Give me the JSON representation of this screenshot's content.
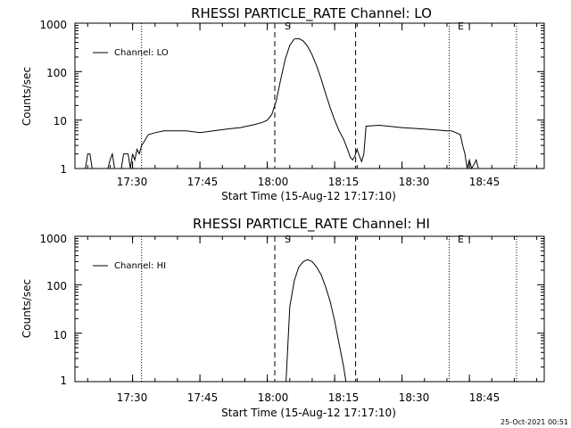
{
  "footer": {
    "timestamp": "25-Oct-2021 00:51"
  },
  "chart_data": [
    {
      "type": "line",
      "title": "RHESSI PARTICLE_RATE Channel: LO",
      "xlabel": "Start Time (15-Aug-12 17:17:10)",
      "ylabel": "Counts/sec",
      "yscale": "log",
      "ylim": [
        1,
        1000
      ],
      "xlim": [
        "17:17:10",
        "19:01:40"
      ],
      "y_ticks": [
        "1",
        "10",
        "100",
        "1000"
      ],
      "x_ticks": [
        "17:30",
        "17:45",
        "18:00",
        "18:15",
        "18:30",
        "18:45"
      ],
      "legend": {
        "label": "Channel: LO",
        "position": "top-left"
      },
      "markers": {
        "start_label": "S",
        "start_time": "18:01:40",
        "end_label": "E",
        "end_time": "18:40:30",
        "dashed_lines": [
          "18:01:40",
          "18:19:40"
        ],
        "dotted_lines": [
          "17:32:00",
          "18:40:30",
          "18:55:30"
        ]
      },
      "series": [
        {
          "name": "Channel: LO",
          "x": [
            "17:19:30",
            "17:20:00",
            "17:20:30",
            "17:21:00",
            "17:24:30",
            "17:25:00",
            "17:25:30",
            "17:26:00",
            "17:27:30",
            "17:28:00",
            "17:29:00",
            "17:29:30",
            "17:30:00",
            "17:30:30",
            "17:31:00",
            "17:31:30",
            "17:32:00",
            "17:32:30",
            "17:33:30",
            "17:35:00",
            "17:37:00",
            "17:40:00",
            "17:42:00",
            "17:45:00",
            "17:48:00",
            "17:51:00",
            "17:54:00",
            "17:57:00",
            "17:59:00",
            "18:00:00",
            "18:01:00",
            "18:02:00",
            "18:03:00",
            "18:04:00",
            "18:05:00",
            "18:06:00",
            "18:07:00",
            "18:08:00",
            "18:09:00",
            "18:10:00",
            "18:11:00",
            "18:12:00",
            "18:13:00",
            "18:14:00",
            "18:15:00",
            "18:16:00",
            "18:17:00",
            "18:18:00",
            "18:18:30",
            "18:19:00",
            "18:19:30",
            "18:20:00",
            "18:20:30",
            "18:21:00",
            "18:21:30",
            "18:22:00",
            "18:25:00",
            "18:30:00",
            "18:35:00",
            "18:38:00",
            "18:40:00",
            "18:41:00",
            "18:42:00",
            "18:43:00",
            "18:43:30",
            "18:44:00",
            "18:44:30",
            "18:45:00",
            "18:45:30",
            "18:46:00",
            "18:46:30",
            "18:47:00"
          ],
          "values": [
            1,
            2,
            2,
            1,
            1,
            1.5,
            2,
            1,
            1,
            2,
            2,
            1,
            2,
            1.5,
            2.5,
            2,
            3,
            3.5,
            5,
            5.5,
            6,
            6,
            6,
            5.5,
            6,
            6.5,
            7,
            8,
            9,
            10,
            13,
            25,
            70,
            180,
            350,
            470,
            480,
            430,
            330,
            220,
            130,
            70,
            35,
            18,
            10,
            6,
            4,
            2.3,
            1.7,
            1.5,
            1.8,
            2.5,
            1.8,
            1.4,
            2,
            7.5,
            7.8,
            7,
            6.5,
            6.2,
            6,
            6,
            5.5,
            5,
            3,
            2,
            1,
            1.5,
            1,
            1.2,
            1.5,
            1
          ],
          "color": "#000000"
        }
      ]
    },
    {
      "type": "line",
      "title": "RHESSI PARTICLE_RATE Channel: HI",
      "xlabel": "Start Time (15-Aug-12 17:17:10)",
      "ylabel": "Counts/sec",
      "yscale": "log",
      "ylim": [
        1,
        1000
      ],
      "xlim": [
        "17:17:10",
        "19:01:40"
      ],
      "y_ticks": [
        "1",
        "10",
        "100",
        "1000"
      ],
      "x_ticks": [
        "17:30",
        "17:45",
        "18:00",
        "18:15",
        "18:30",
        "18:45"
      ],
      "legend": {
        "label": "Channel: HI",
        "position": "top-left"
      },
      "markers": {
        "start_label": "S",
        "start_time": "18:01:40",
        "end_label": "E",
        "end_time": "18:40:30",
        "dashed_lines": [
          "18:01:40",
          "18:19:40"
        ],
        "dotted_lines": [
          "17:32:00",
          "18:40:30",
          "18:55:30"
        ]
      },
      "series": [
        {
          "name": "Channel: HI",
          "x": [
            "18:04:10",
            "18:05:00",
            "18:06:00",
            "18:07:00",
            "18:08:00",
            "18:09:00",
            "18:10:00",
            "18:11:00",
            "18:12:00",
            "18:13:00",
            "18:14:00",
            "18:15:00",
            "18:16:00",
            "18:17:00",
            "18:17:30"
          ],
          "values": [
            1,
            35,
            120,
            230,
            300,
            330,
            300,
            230,
            160,
            90,
            45,
            18,
            6,
            2,
            1
          ],
          "color": "#000000"
        }
      ]
    }
  ]
}
